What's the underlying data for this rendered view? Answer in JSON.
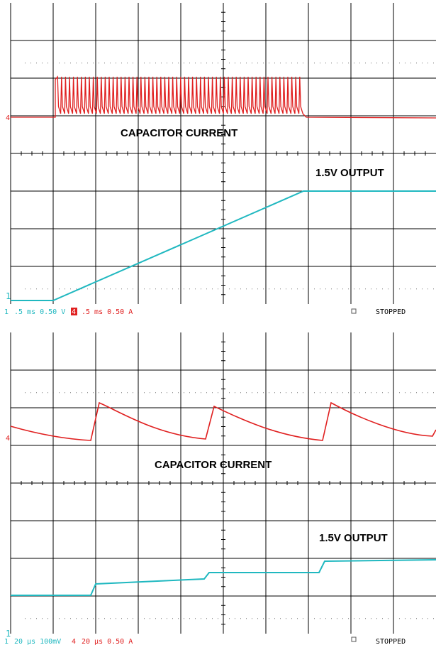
{
  "screens": [
    {
      "annotations": {
        "current": "CAPACITOR CURRENT",
        "output": "1.5V OUTPUT"
      },
      "markers": {
        "ch4": "4",
        "ch1": "1"
      },
      "status": {
        "ch1": "1",
        "ch1_setting": ".5 ms 0.50 V",
        "ch4": "4",
        "ch4_setting": ".5 ms 0.50 A",
        "state": "STOPPED"
      }
    },
    {
      "annotations": {
        "current": "CAPACITOR CURRENT",
        "output": "1.5V OUTPUT"
      },
      "markers": {
        "ch4": "4",
        "ch1": "1"
      },
      "status": {
        "ch1": "1",
        "ch1_setting": "20 µs 100mV",
        "ch4": "4",
        "ch4_setting": "20 µs 0.50 A",
        "state": "STOPPED"
      }
    }
  ]
}
